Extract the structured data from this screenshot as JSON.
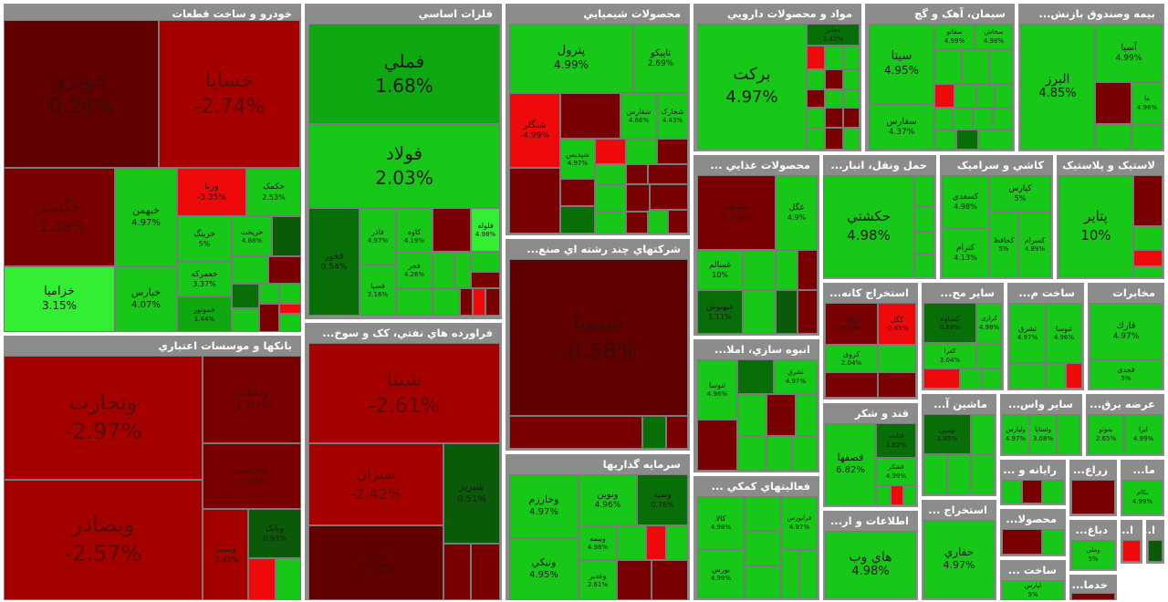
{
  "colors": {
    "strong_green": "#00dc00",
    "green": "#18c818",
    "light_green": "#33ee33",
    "mid_green": "#10a810",
    "dark_green": "#086e08",
    "deep_green": "#0a5a0a",
    "red": "#ee0a0a",
    "mid_red": "#c00606",
    "dark_red": "#a40000",
    "deep_red": "#780000",
    "darkest_red": "#600000",
    "header_bg": "#8c8c8c"
  },
  "chart_data": {
    "type": "treemap",
    "metric": "percent change",
    "sectors": [
      {
        "name": "خودرو و ساخت قطعات",
        "stocks": [
          {
            "symbol": "خودرو",
            "change": "0.24%"
          },
          {
            "symbol": "خسایا",
            "change": "-2.74%"
          },
          {
            "symbol": "خگستر",
            "change": "-1.38%"
          },
          {
            "symbol": "خبهمن",
            "change": "4.97%"
          },
          {
            "symbol": "ورنا",
            "change": "-3.35%"
          },
          {
            "symbol": "خکمک",
            "change": "2.53%"
          },
          {
            "symbol": "خرینگ",
            "change": "5%"
          },
          {
            "symbol": "خریخت",
            "change": "4.88%"
          },
          {
            "symbol": "خعمرکه",
            "change": "3.37%"
          },
          {
            "symbol": "خپارس",
            "change": "4.07%"
          },
          {
            "symbol": "خزامیا",
            "change": "3.15%"
          },
          {
            "symbol": "خموتور",
            "change": "1.44%"
          }
        ]
      },
      {
        "name": "فلزات اساسي",
        "stocks": [
          {
            "symbol": "فملي",
            "change": "1.68%"
          },
          {
            "symbol": "فولاد",
            "change": "2.03%"
          },
          {
            "symbol": "فخوز",
            "change": "0.54%"
          },
          {
            "symbol": "فاذر",
            "change": "4.97%"
          },
          {
            "symbol": "کاوه",
            "change": "4.19%"
          },
          {
            "symbol": "فسپا",
            "change": "2.16%"
          },
          {
            "symbol": "فلوله",
            "change": "4.98%"
          },
          {
            "symbol": "فجر",
            "change": "4.26%"
          }
        ]
      },
      {
        "name": "محصولات شيميايي",
        "stocks": [
          {
            "symbol": "پترول",
            "change": "4.99%"
          },
          {
            "symbol": "تاپيکو",
            "change": "2.69%"
          },
          {
            "symbol": "شنگلر",
            "change": "-4.99%"
          },
          {
            "symbol": "شفارس",
            "change": "4.66%"
          },
          {
            "symbol": "شخارک",
            "change": "4.43%"
          },
          {
            "symbol": "شپدیس",
            "change": "4.97%"
          }
        ]
      },
      {
        "name": "مواد و محصولات دارويي",
        "stocks": [
          {
            "symbol": "برکت",
            "change": "4.97%"
          },
          {
            "symbol": "دجابر",
            "change": "1.42%"
          }
        ]
      },
      {
        "name": "سيمان، آهک و گچ",
        "stocks": [
          {
            "symbol": "سيتا",
            "change": "4.95%"
          },
          {
            "symbol": "سفارس",
            "change": "4.37%"
          },
          {
            "symbol": "سفانو",
            "change": "4.99%"
          },
          {
            "symbol": "سخاش",
            "change": "4.98%"
          }
        ]
      },
      {
        "name": "بيمه وصندوق بازنشستگي",
        "stocks": [
          {
            "symbol": "البرز",
            "change": "4.85%"
          },
          {
            "symbol": "آسيا",
            "change": "4.99%"
          },
          {
            "symbol": "ما",
            "change": "4.96%"
          }
        ]
      },
      {
        "name": "بانکها و موسسات اعتباري",
        "stocks": [
          {
            "symbol": "وتجارت",
            "change": "-2.97%"
          },
          {
            "symbol": "وبصادر",
            "change": "-2.57%"
          },
          {
            "symbol": "وبملت",
            "change": "-1.67%"
          },
          {
            "symbol": "وپارسی",
            "change": "-1.84%"
          },
          {
            "symbol": "وبانک",
            "change": "0.93%"
          },
          {
            "symbol": "وپست",
            "change": "-2.41%"
          }
        ]
      },
      {
        "name": "فراورده هاي نفتي، کک و سوخت هسته اي",
        "stocks": [
          {
            "symbol": "شبنا",
            "change": "-2.61%"
          },
          {
            "symbol": "شتران",
            "change": "-2.42%"
          },
          {
            "symbol": "شبریز",
            "change": "0.51%"
          },
          {
            "symbol": "شپنا",
            "change": "-3.13%"
          }
        ]
      },
      {
        "name": "شرکتهاي چند رشته اي صنعتي",
        "stocks": [
          {
            "symbol": "شستا",
            "change": "-0.58%"
          }
        ]
      },
      {
        "name": "سرمايه گذاريها",
        "stocks": [
          {
            "symbol": "وخارزم",
            "change": "4.97%"
          },
          {
            "symbol": "ونوين",
            "change": "4.96%"
          },
          {
            "symbol": "وسپه",
            "change": "0.76%"
          },
          {
            "symbol": "وبيمه",
            "change": "4.98%"
          },
          {
            "symbol": "ونيکي",
            "change": "4.95%"
          },
          {
            "symbol": "وغدیر",
            "change": "2.61%"
          }
        ]
      },
      {
        "name": "محصولات غذايي و آشاميدني به جز قند و شکر",
        "stocks": [
          {
            "symbol": "غشهد",
            "change": "1.16%"
          },
          {
            "symbol": "غگل",
            "change": "4.9%"
          },
          {
            "symbol": "غسالم",
            "change": "10%"
          },
          {
            "symbol": "غبهنوش",
            "change": "1.11%"
          }
        ]
      },
      {
        "name": "حمل ونقل، انبارداري و ارتباطات",
        "stocks": [
          {
            "symbol": "حکشتي",
            "change": "4.98%"
          }
        ]
      },
      {
        "name": "کاشي و سراميک",
        "stocks": [
          {
            "symbol": "کسعدی",
            "change": "4.98%"
          },
          {
            "symbol": "کپارس",
            "change": "5%"
          },
          {
            "symbol": "کترام",
            "change": "4.13%"
          },
          {
            "symbol": "کحافظ",
            "change": "5%"
          },
          {
            "symbol": "کسرام",
            "change": "4.89%"
          }
        ]
      },
      {
        "name": "لاستيک و پلاستيک",
        "stocks": [
          {
            "symbol": "پتاير",
            "change": "10%"
          }
        ]
      },
      {
        "name": "استخراج کانه هاي فلزي",
        "stocks": [
          {
            "symbol": "کچاد",
            "change": "0.99%"
          },
          {
            "symbol": "کروی",
            "change": "2.04%"
          },
          {
            "symbol": "کگل",
            "change": "-2.45%"
          }
        ]
      },
      {
        "name": "ساير محصولات کاني غيرفلزي",
        "stocks": [
          {
            "symbol": "کساوه",
            "change": "0.88%"
          },
          {
            "symbol": "کفرا",
            "change": "3.04%"
          },
          {
            "symbol": "کرازی",
            "change": "4.98%"
          }
        ]
      },
      {
        "name": "انبوه سازي، املاک و مستغلات",
        "stocks": [
          {
            "symbol": "ثنوسا",
            "change": "4.96%"
          },
          {
            "symbol": "ثشرق",
            "change": "4.97%"
          }
        ]
      },
      {
        "name": "ساخت محصولات فلزي",
        "stocks": [
          {
            "symbol": "فارك",
            "change": "4.97%"
          },
          {
            "symbol": "فجدی",
            "change": "5%"
          }
        ]
      },
      {
        "name": "مخابرات",
        "stocks": [
          {
            "symbol": "اخابر",
            "change": "4.98%"
          },
          {
            "symbol": "همراه",
            "change": "4.98%"
          }
        ]
      },
      {
        "name": "قند و شکر",
        "stocks": [
          {
            "symbol": "قصفها",
            "change": "6.82%"
          },
          {
            "symbol": "قثابت",
            "change": "1.82%"
          },
          {
            "symbol": "قشکر",
            "change": "4.99%"
          }
        ]
      },
      {
        "name": "ماشين آلات و تجهيزات",
        "stocks": [
          {
            "symbol": "تپمپی",
            "change": "1.85%"
          }
        ]
      },
      {
        "name": "ساير واسطه گريهاي مالي",
        "stocks": [
          {
            "symbol": "ولساپا",
            "change": "3.08%"
          },
          {
            "symbol": "ولپارس",
            "change": "4.97%"
          }
        ]
      },
      {
        "name": "عرضه برق، گاز، بخار و آب گرم",
        "stocks": [
          {
            "symbol": "بموتو",
            "change": "2.65%"
          },
          {
            "symbol": "ایرا",
            "change": "4.99%"
          }
        ]
      },
      {
        "name": "فعاليتهاي کمکي به نهادهاي مالي واسط",
        "stocks": [
          {
            "symbol": "کالا",
            "change": "4.98%"
          },
          {
            "symbol": "بورس",
            "change": "4.99%"
          },
          {
            "symbol": "فرابورس",
            "change": "4.97%"
          }
        ]
      },
      {
        "name": "اطلاعات و ارتباطات",
        "stocks": [
          {
            "symbol": "هاي وب",
            "change": "4.98%"
          }
        ]
      },
      {
        "name": "استخراج نفت گاز و خدمات جنبي",
        "stocks": [
          {
            "symbol": "حفاري",
            "change": "4.97%"
          }
        ]
      },
      {
        "name": "رايانه و فعاليت هاي وابسته",
        "stocks": []
      },
      {
        "name": "زراعت و خدمات وابسته",
        "stocks": []
      },
      {
        "name": "ماشين آلات و دستگاه هاي برقي",
        "stocks": [
          {
            "symbol": "بکام",
            "change": "4.99%"
          }
        ]
      },
      {
        "name": "محصولات کاغذي",
        "stocks": []
      },
      {
        "name": "دباغي، پرداخت چرم و ساخت انواع پاپوش",
        "stocks": [
          {
            "symbol": "وملی",
            "change": "5%"
          }
        ]
      },
      {
        "name": "ساخت دستگاه ها و وسايل ارتباطي",
        "stocks": [
          {
            "symbol": "لپارس",
            "change": "5%"
          }
        ]
      },
      {
        "name": "خدمات فني و مهندسي",
        "stocks": []
      }
    ]
  },
  "headers": {
    "auto": "خودرو و ساخت قطعات",
    "metals": "فلزات اساسي",
    "chem": "محصولات شيميايي",
    "pharma": "مواد و محصولات دارويي",
    "cement": "سيمان، آهک و گچ",
    "insurance": "بيمه وصندوق بازنش...",
    "banks": "بانکها و موسسات اعتباري",
    "refinery": "فراورده هاي نفتي، کک و سوخ...",
    "multi": "شرکتهاي چند رشته اي صنع...",
    "investment": "سرمايه گذاريها",
    "food": "محصولات غذايي ...",
    "transport": "حمل ونقل، انبار...",
    "tile": "کاشي و سراميک",
    "plastic": "لاستيک و پلاستيک",
    "mining": "استخراج کانه...",
    "nonmetal": "ساير مح...",
    "metalprod": "ساخت م...",
    "telecom": "مخابرات",
    "realestate": "انبوه سازي، املا...",
    "sugar": "قند و شکر",
    "machinery": "ماشين آ...",
    "finint": "ساير واس...",
    "power": "عرضه برق...",
    "support": "فعاليتهاي کمکي ...",
    "ict": "اطلاعات و ار...",
    "oilgas": "استخراج ...",
    "computer": "رايانه و ...",
    "agri": "زراع...",
    "electric": "ما...",
    "paper": "محصولا...",
    "leather": "دباغ...",
    "commdev": "ساخت ...",
    "eng": "خدما...",
    "tiny1": "ا...",
    "tiny2": "ا..."
  }
}
